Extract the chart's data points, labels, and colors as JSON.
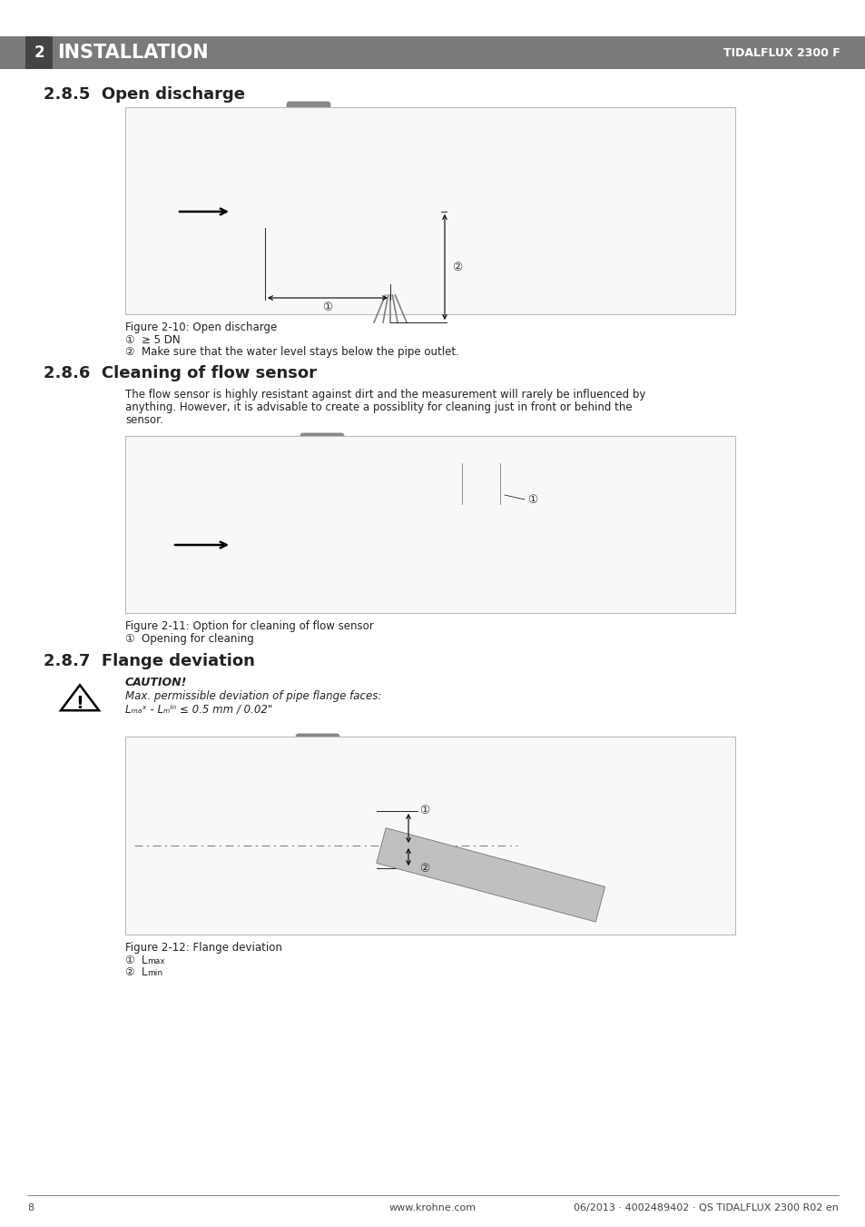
{
  "page_bg": "#ffffff",
  "header_bar_color": "#7a7a7a",
  "header_text": "INSTALLATION",
  "header_number": "2",
  "header_right": "TIDALFLUX 2300 F",
  "section1_title": "2.8.5  Open discharge",
  "section2_title": "2.8.6  Cleaning of flow sensor",
  "section3_title": "2.8.7  Flange deviation",
  "fig1_caption": "Figure 2-10: Open discharge",
  "fig1_note1": "①  ≥ 5 DN",
  "fig1_note2": "②  Make sure that the water level stays below the pipe outlet.",
  "fig2_caption": "Figure 2-11: Option for cleaning of flow sensor",
  "fig2_note1": "①  Opening for cleaning",
  "section2_body1": "The flow sensor is highly resistant against dirt and the measurement will rarely be influenced by",
  "section2_body2": "anything. However, it is advisable to create a possiblity for cleaning just in front or behind the",
  "section2_body3": "sensor.",
  "caution_title": "CAUTION!",
  "caution_line1": "Max. permissible deviation of pipe flange faces:",
  "caution_line2": "Lₘₐˣ - Lₘᴵⁿ ≤ 0.5 mm / 0.02\"",
  "fig3_caption": "Figure 2-12: Flange deviation",
  "fig3_note1_prefix": "①  L",
  "fig3_note1_sub": "max",
  "fig3_note2_prefix": "②  L",
  "fig3_note2_sub": "min",
  "footer_page": "8",
  "footer_center": "www.krohne.com",
  "footer_right": "06/2013 · 4002489402 · QS TIDALFLUX 2300 R02 en",
  "diagram_bg": "#f8f8f8",
  "diagram_border": "#bbbbbb",
  "pipe_color": "#c0c0c0",
  "pipe_dark": "#a0a0a0",
  "pipe_edge": "#808080",
  "sensor_color": "#b8b8b8",
  "flange_color": "#d0d0d0"
}
